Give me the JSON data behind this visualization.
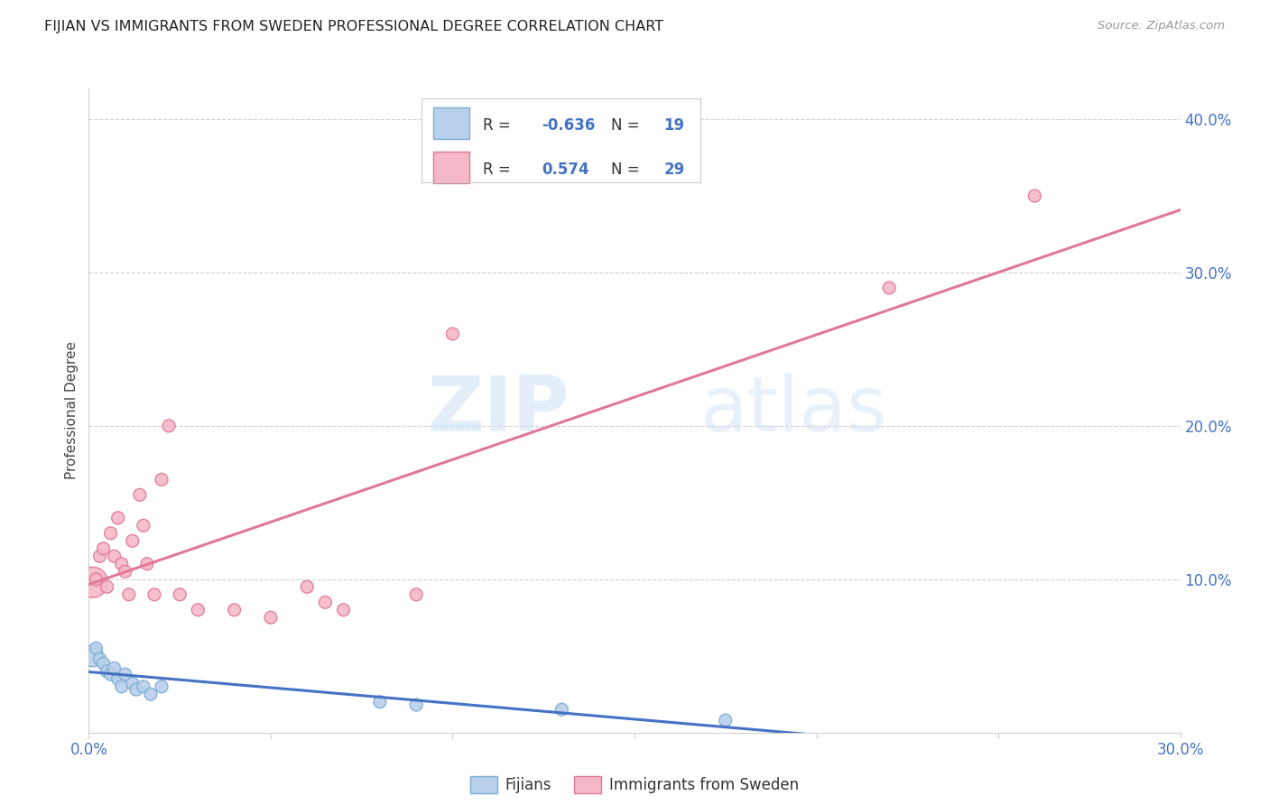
{
  "title": "FIJIAN VS IMMIGRANTS FROM SWEDEN PROFESSIONAL DEGREE CORRELATION CHART",
  "source": "Source: ZipAtlas.com",
  "ylabel": "Professional Degree",
  "watermark_zip": "ZIP",
  "watermark_atlas": "atlas",
  "xlim": [
    0.0,
    0.3
  ],
  "ylim": [
    0.0,
    0.42
  ],
  "xticks": [
    0.0,
    0.05,
    0.1,
    0.15,
    0.2,
    0.25,
    0.3
  ],
  "yticks_right": [
    0.0,
    0.1,
    0.2,
    0.3,
    0.4
  ],
  "ytick_labels_right": [
    "",
    "10.0%",
    "20.0%",
    "30.0%",
    "40.0%"
  ],
  "fijians_color_edge": "#7dadd4",
  "fijians_color_fill": "#b8d0ea",
  "sweden_color_fill": "#f5b8c8",
  "sweden_color_edge": "#e07898",
  "fijians_R": -0.636,
  "fijians_N": 19,
  "sweden_R": 0.574,
  "sweden_N": 29,
  "fijians_x": [
    0.001,
    0.002,
    0.003,
    0.004,
    0.005,
    0.006,
    0.007,
    0.008,
    0.009,
    0.01,
    0.012,
    0.013,
    0.015,
    0.017,
    0.02,
    0.08,
    0.09,
    0.13,
    0.175
  ],
  "fijians_y": [
    0.05,
    0.055,
    0.048,
    0.045,
    0.04,
    0.038,
    0.042,
    0.035,
    0.03,
    0.038,
    0.032,
    0.028,
    0.03,
    0.025,
    0.03,
    0.02,
    0.018,
    0.015,
    0.008
  ],
  "fijians_sizes": [
    300,
    100,
    100,
    100,
    100,
    100,
    100,
    100,
    100,
    100,
    100,
    100,
    100,
    100,
    100,
    100,
    100,
    100,
    100
  ],
  "sweden_x": [
    0.001,
    0.002,
    0.003,
    0.004,
    0.005,
    0.006,
    0.007,
    0.008,
    0.009,
    0.01,
    0.011,
    0.012,
    0.014,
    0.015,
    0.016,
    0.018,
    0.02,
    0.022,
    0.025,
    0.03,
    0.04,
    0.05,
    0.06,
    0.065,
    0.07,
    0.09,
    0.1,
    0.22,
    0.26
  ],
  "sweden_y": [
    0.098,
    0.1,
    0.115,
    0.12,
    0.095,
    0.13,
    0.115,
    0.14,
    0.11,
    0.105,
    0.09,
    0.125,
    0.155,
    0.135,
    0.11,
    0.09,
    0.165,
    0.2,
    0.09,
    0.08,
    0.08,
    0.075,
    0.095,
    0.085,
    0.08,
    0.09,
    0.26,
    0.29,
    0.35
  ],
  "sweden_sizes": [
    600,
    100,
    100,
    100,
    100,
    100,
    100,
    100,
    100,
    100,
    100,
    100,
    100,
    100,
    100,
    100,
    100,
    100,
    100,
    100,
    100,
    100,
    100,
    100,
    100,
    100,
    100,
    100,
    100
  ],
  "blue_line_color": "#4472c4",
  "pink_line_color": "#e07898",
  "grid_color": "#d0d0d0",
  "background_color": "#ffffff",
  "title_fontsize": 11.5,
  "axis_label_color_right": "#4472c4",
  "legend_text_color": "#4472c4",
  "legend_label_color": "#333333"
}
